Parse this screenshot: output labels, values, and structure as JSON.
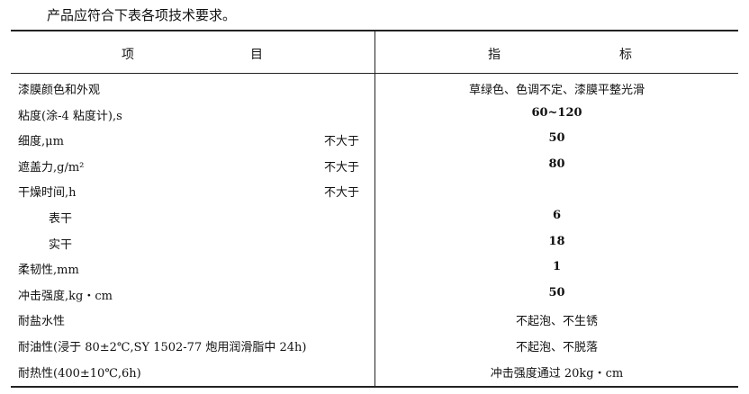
{
  "intro": "产品应符合下表各项技术要求。",
  "header": {
    "item_a": "项",
    "item_b": "目",
    "index_a": "指",
    "index_b": "标"
  },
  "rows": [
    {
      "name": "漆膜颜色和外观",
      "note": "",
      "value": "草绿色、色调不定、漆膜平整光滑",
      "indent": false,
      "bold": false
    },
    {
      "name": "粘度(涂-4 粘度计),s",
      "note": "",
      "value": "60~120",
      "indent": false,
      "bold": true
    },
    {
      "name": "细度,μm",
      "note": "不大于",
      "value": "50",
      "indent": false,
      "bold": true
    },
    {
      "name": "遮盖力,g/m²",
      "note": "不大于",
      "value": "80",
      "indent": false,
      "bold": true
    },
    {
      "name": "干燥时间,h",
      "note": "不大于",
      "value": "",
      "indent": false,
      "bold": true
    },
    {
      "name": "表干",
      "note": "",
      "value": "6",
      "indent": true,
      "bold": true
    },
    {
      "name": "实干",
      "note": "",
      "value": "18",
      "indent": true,
      "bold": true
    },
    {
      "name": "柔韧性,mm",
      "note": "",
      "value": "1",
      "indent": false,
      "bold": true
    },
    {
      "name": "冲击强度,kg・cm",
      "note": "",
      "value": "50",
      "indent": false,
      "bold": true
    },
    {
      "name": "耐盐水性",
      "note": "",
      "value": "不起泡、不生锈",
      "indent": false,
      "bold": false
    },
    {
      "name": "耐油性(浸于 80±2℃,SY 1502-77 炮用润滑脂中 24h)",
      "note": "",
      "value": "不起泡、不脱落",
      "indent": false,
      "bold": false
    },
    {
      "name": "耐热性(400±10℃,6h)",
      "note": "",
      "value": "冲击强度通过 20kg・cm",
      "indent": false,
      "bold": false
    }
  ]
}
